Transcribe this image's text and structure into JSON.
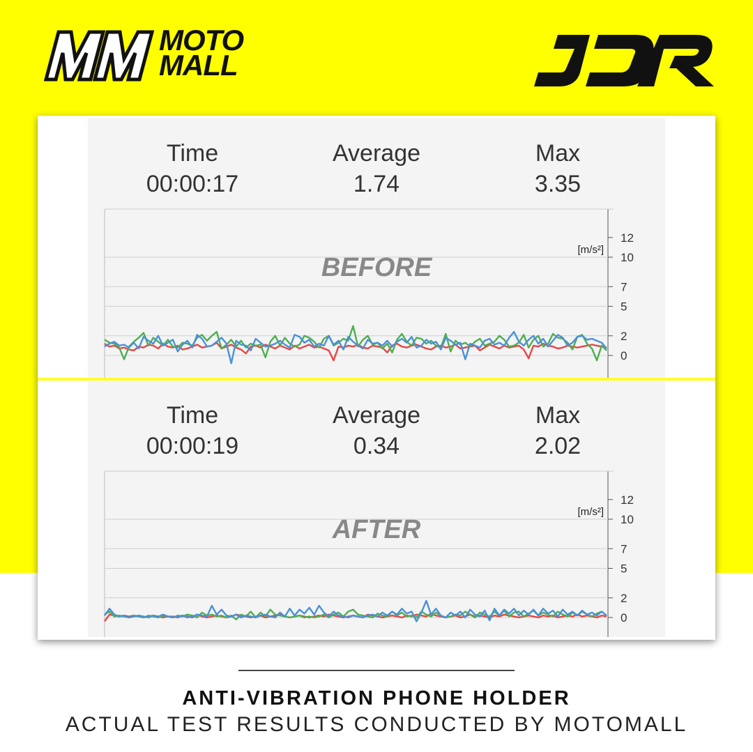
{
  "brand": {
    "left_line1": "MOTO",
    "left_line2": "MALL",
    "right_logo": "JDR",
    "colors": {
      "background": "#ffff00",
      "ink": "#111111"
    }
  },
  "panels": [
    {
      "overlay_label": "BEFORE",
      "time_label": "Time",
      "time_value": "00:00:17",
      "average_label": "Average",
      "average_value": "1.74",
      "max_label": "Max",
      "max_value": "3.35"
    },
    {
      "overlay_label": "AFTER",
      "time_label": "Time",
      "time_value": "00:00:19",
      "average_label": "Average",
      "average_value": "0.34",
      "max_label": "Max",
      "max_value": "2.02"
    }
  ],
  "footer": {
    "title": "ANTI-VIBRATION PHONE HOLDER",
    "subtitle": "ACTUAL TEST RESULTS CONDUCTED BY MOTOMALL"
  },
  "chart_data": [
    {
      "type": "line",
      "title": "BEFORE",
      "ylabel": "[m/s²]",
      "yticks": [
        0,
        2,
        5,
        7,
        10,
        12
      ],
      "ylim": [
        -0.8,
        12
      ],
      "grid": true,
      "series_colors": [
        "#e84545",
        "#4caf50",
        "#4a90d9"
      ],
      "series": [
        {
          "values": [
            1.2,
            0.9,
            1.0,
            0.7,
            0.8,
            0.6,
            0.5,
            0.9,
            0.8,
            1.1,
            1.0,
            0.7,
            1.2,
            0.9,
            0.8,
            1.0,
            0.6,
            0.7,
            0.9,
            1.1,
            0.8,
            0.9,
            1.0,
            1.3,
            0.7,
            0.9,
            1.1,
            0.8,
            0.6,
            0.2,
            0.9,
            1.0,
            0.8,
            1.1,
            0.9,
            0.7,
            1.0,
            0.8,
            0.6,
            1.0,
            0.7,
            0.9,
            1.1,
            0.8,
            0.9,
            0.7,
            0.5,
            -0.5,
            0.9,
            0.8,
            1.0,
            0.9,
            1.1,
            0.8,
            0.7,
            1.0,
            0.9,
            0.8,
            0.3,
            1.0,
            1.2,
            0.9,
            0.8,
            1.0,
            1.1,
            0.9,
            0.7,
            0.6,
            0.9,
            1.0,
            0.8,
            0.9,
            1.1,
            0.7,
            0.8,
            0.9,
            1.0,
            0.5,
            0.8,
            1.1,
            0.9,
            0.7,
            1.0,
            0.8,
            0.9,
            1.0,
            0.6,
            -0.3,
            1.0,
            0.9,
            1.2,
            1.0,
            0.9,
            0.7,
            0.8,
            1.0,
            0.9,
            0.8,
            0.9,
            1.0,
            1.1,
            1.0,
            0.9,
            0.8
          ]
        },
        {
          "values": [
            1.6,
            1.3,
            1.2,
            0.8,
            -0.4,
            0.9,
            1.4,
            1.8,
            2.3,
            1.0,
            1.8,
            1.4,
            1.0,
            1.6,
            0.9,
            0.8,
            1.3,
            1.2,
            1.0,
            1.8,
            2.1,
            1.5,
            2.0,
            2.4,
            0.7,
            1.1,
            1.6,
            0.9,
            1.5,
            0.8,
            1.2,
            1.0,
            1.1,
            -0.2,
            1.4,
            2.0,
            1.0,
            1.8,
            1.2,
            0.9,
            1.1,
            2.0,
            1.8,
            1.4,
            0.8,
            1.7,
            2.0,
            1.0,
            1.3,
            1.7,
            1.5,
            3.0,
            0.9,
            1.6,
            2.0,
            1.1,
            1.3,
            0.7,
            1.2,
            0.3,
            1.6,
            2.2,
            1.4,
            1.0,
            1.8,
            1.7,
            1.2,
            1.5,
            1.0,
            0.8,
            2.2,
            0.4,
            1.5,
            1.1,
            1.3,
            0.9,
            1.4,
            1.7,
            1.0,
            1.2,
            1.4,
            2.0,
            1.6,
            0.9,
            1.0,
            1.3,
            2.1,
            0.8,
            1.6,
            2.0,
            0.9,
            1.2,
            2.2,
            1.8,
            1.7,
            1.3,
            0.6,
            1.9,
            2.1,
            1.2,
            0.7,
            -0.5,
            1.0,
            0.5
          ]
        },
        {
          "values": [
            0.9,
            1.2,
            1.4,
            1.0,
            1.1,
            0.8,
            1.3,
            0.7,
            1.9,
            1.5,
            1.2,
            2.0,
            1.0,
            1.3,
            1.6,
            0.4,
            1.1,
            1.5,
            0.8,
            2.1,
            1.7,
            0.9,
            1.0,
            1.4,
            1.8,
            1.2,
            -0.8,
            1.5,
            1.1,
            1.0,
            0.5,
            1.7,
            1.3,
            0.9,
            1.0,
            1.2,
            1.5,
            1.1,
            0.8,
            2.1,
            1.9,
            1.3,
            1.6,
            0.9,
            1.2,
            1.0,
            2.0,
            1.1,
            1.5,
            0.6,
            1.9,
            1.4,
            1.0,
            0.7,
            1.6,
            1.2,
            1.3,
            1.0,
            1.5,
            0.9,
            1.4,
            1.7,
            1.3,
            1.9,
            0.8,
            1.0,
            1.6,
            1.2,
            1.4,
            0.6,
            1.8,
            1.5,
            1.1,
            1.3,
            -0.4,
            1.2,
            1.0,
            0.8,
            1.5,
            1.7,
            1.1,
            1.3,
            1.0,
            1.8,
            2.4,
            1.4,
            1.0,
            1.6,
            2.0,
            1.2,
            1.7,
            0.9,
            1.5,
            2.1,
            1.8,
            1.0,
            1.3,
            1.9,
            2.0,
            1.6,
            1.7,
            1.5,
            1.3,
            0.7
          ]
        }
      ]
    },
    {
      "type": "line",
      "title": "AFTER",
      "ylabel": "[m/s²]",
      "yticks": [
        0,
        2,
        5,
        7,
        10,
        12
      ],
      "ylim": [
        -0.8,
        12
      ],
      "grid": true,
      "series_colors": [
        "#e84545",
        "#4caf50",
        "#4a90d9"
      ],
      "series": [
        {
          "values": [
            -0.4,
            0.3,
            0.2,
            0.1,
            0.2,
            0.1,
            0.2,
            0.1,
            0.0,
            0.1,
            0.2,
            0.1,
            0.0,
            0.1,
            0.1,
            0.0,
            0.2,
            0.1,
            0.0,
            0.3,
            0.1,
            0.0,
            0.1,
            0.2,
            0.1,
            0.0,
            0.1,
            0.3,
            0.2,
            0.1,
            0.0,
            0.1,
            0.2,
            0.0,
            0.1,
            0.2,
            0.3,
            0.1,
            0.0,
            0.1,
            0.2,
            0.1,
            0.0,
            0.1,
            0.2,
            0.1,
            0.3,
            0.2,
            0.1,
            0.0,
            0.1,
            0.2,
            0.1,
            0.0,
            0.3,
            0.2,
            0.1,
            0.0,
            0.1,
            0.2,
            0.1,
            0.0,
            0.2,
            0.1,
            0.3,
            0.2,
            0.1,
            0.4,
            0.2,
            0.1,
            0.0,
            0.1,
            0.2,
            0.0,
            0.1,
            0.3,
            0.1,
            0.2,
            0.1,
            0.0,
            0.2,
            0.1,
            0.3,
            0.2,
            0.1,
            0.0,
            0.1,
            0.2,
            0.1,
            0.0,
            0.2,
            0.1,
            0.2,
            0.0,
            0.1,
            0.2,
            0.1,
            0.3,
            0.1,
            0.2,
            0.1,
            0.0,
            0.2,
            0.1
          ]
        },
        {
          "values": [
            0.3,
            0.6,
            0.1,
            0.2,
            0.1,
            0.0,
            0.2,
            0.1,
            0.0,
            0.2,
            0.1,
            0.0,
            0.2,
            0.1,
            0.0,
            0.2,
            0.1,
            0.3,
            0.2,
            0.0,
            0.5,
            0.2,
            0.3,
            0.1,
            0.2,
            0.0,
            0.2,
            -0.2,
            0.3,
            0.1,
            0.6,
            0.0,
            0.5,
            0.1,
            0.8,
            0.3,
            0.2,
            0.1,
            0.0,
            0.1,
            0.2,
            0.0,
            0.1,
            0.0,
            0.1,
            0.3,
            0.0,
            0.3,
            0.5,
            0.1,
            0.6,
            0.8,
            0.3,
            0.2,
            0.1,
            0.0,
            0.4,
            0.2,
            0.1,
            0.6,
            0.2,
            0.5,
            0.1,
            0.2,
            0.0,
            0.6,
            0.3,
            0.1,
            0.5,
            0.2,
            0.0,
            0.1,
            0.3,
            0.2,
            0.6,
            0.3,
            0.0,
            0.5,
            0.3,
            0.1,
            0.6,
            0.2,
            0.7,
            0.1,
            0.5,
            0.6,
            0.1,
            0.4,
            0.7,
            0.2,
            0.5,
            0.3,
            0.1,
            0.6,
            0.3,
            0.1,
            0.5,
            0.2,
            0.6,
            0.3,
            0.1,
            0.4,
            0.6,
            0.2
          ]
        },
        {
          "values": [
            0.2,
            0.9,
            0.3,
            0.1,
            0.2,
            0.0,
            0.1,
            0.2,
            0.1,
            0.0,
            0.2,
            0.1,
            0.3,
            0.1,
            0.0,
            0.1,
            0.2,
            0.0,
            0.1,
            0.3,
            0.2,
            0.1,
            1.2,
            0.3,
            0.8,
            0.2,
            0.1,
            0.3,
            0.0,
            0.2,
            0.1,
            0.0,
            0.2,
            0.3,
            0.1,
            0.0,
            0.5,
            0.1,
            0.9,
            0.2,
            0.8,
            0.4,
            1.0,
            0.3,
            1.2,
            0.5,
            0.1,
            0.6,
            0.2,
            0.1,
            0.0,
            0.2,
            0.1,
            0.0,
            0.2,
            0.3,
            0.1,
            0.5,
            0.2,
            0.6,
            0.3,
            0.9,
            0.4,
            0.6,
            -0.4,
            0.5,
            1.7,
            0.3,
            0.9,
            0.2,
            0.0,
            0.5,
            0.2,
            0.6,
            0.0,
            0.8,
            0.3,
            0.1,
            0.7,
            -0.3,
            0.9,
            0.2,
            0.8,
            0.4,
            0.9,
            0.2,
            0.7,
            0.3,
            0.8,
            0.2,
            0.9,
            0.4,
            0.7,
            0.1,
            0.8,
            0.3,
            0.6,
            0.2,
            0.7,
            0.3,
            0.5,
            0.2,
            0.6,
            0.2
          ]
        }
      ]
    }
  ]
}
